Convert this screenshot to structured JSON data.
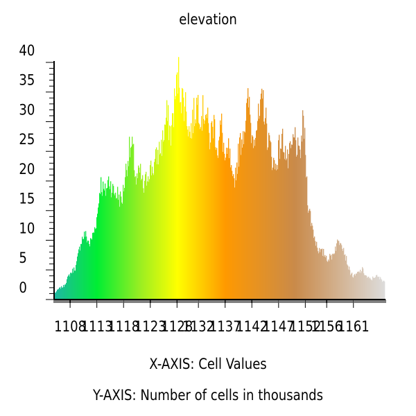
{
  "chart_data": {
    "type": "bar",
    "title": "elevation",
    "xlabel": "X-AXIS: Cell Values",
    "ylabel": "Y-AXIS: Number of cells in thousands",
    "ylim": [
      0,
      40
    ],
    "xlim": [
      1105,
      1167
    ],
    "y_ticks": [
      0,
      5,
      10,
      15,
      20,
      25,
      30,
      35,
      40
    ],
    "x_ticks": [
      1108,
      1113,
      1118,
      1123,
      1128,
      1132,
      1137,
      1142,
      1147,
      1152,
      1156,
      1161
    ],
    "grid": false,
    "legend": "none",
    "color_stops": [
      {
        "value": 1105,
        "color": "#1fb7a4"
      },
      {
        "value": 1113,
        "color": "#00ee33"
      },
      {
        "value": 1121,
        "color": "#99ee22"
      },
      {
        "value": 1128,
        "color": "#ffff00"
      },
      {
        "value": 1137,
        "color": "#ff9900"
      },
      {
        "value": 1150,
        "color": "#c98a4a"
      },
      {
        "value": 1167,
        "color": "#dddddd"
      }
    ],
    "series_points": [
      [
        1105.0,
        1.0
      ],
      [
        1105.8,
        1.8
      ],
      [
        1106.8,
        2.3
      ],
      [
        1107.8,
        4.2
      ],
      [
        1109.0,
        5.5
      ],
      [
        1110.0,
        10.0
      ],
      [
        1110.7,
        11.0
      ],
      [
        1111.6,
        9.3
      ],
      [
        1112.4,
        11.5
      ],
      [
        1113.0,
        14.0
      ],
      [
        1113.6,
        19.8
      ],
      [
        1114.4,
        17.8
      ],
      [
        1115.2,
        20.3
      ],
      [
        1116.0,
        18.2
      ],
      [
        1116.8,
        17.8
      ],
      [
        1117.6,
        16.5
      ],
      [
        1118.4,
        22.0
      ],
      [
        1119.0,
        25.0
      ],
      [
        1119.6,
        25.5
      ],
      [
        1120.3,
        19.8
      ],
      [
        1121.0,
        21.5
      ],
      [
        1121.7,
        18.5
      ],
      [
        1122.6,
        21.8
      ],
      [
        1123.5,
        22.3
      ],
      [
        1124.3,
        24.3
      ],
      [
        1125.2,
        26.5
      ],
      [
        1126.0,
        31.0
      ],
      [
        1126.8,
        27.8
      ],
      [
        1127.5,
        33.5
      ],
      [
        1128.2,
        38.0
      ],
      [
        1128.8,
        34.0
      ],
      [
        1129.5,
        33.0
      ],
      [
        1130.3,
        27.8
      ],
      [
        1131.2,
        31.5
      ],
      [
        1131.8,
        33.5
      ],
      [
        1132.5,
        31.0
      ],
      [
        1133.3,
        32.3
      ],
      [
        1134.0,
        27.0
      ],
      [
        1134.8,
        30.0
      ],
      [
        1135.6,
        25.0
      ],
      [
        1136.2,
        29.8
      ],
      [
        1137.0,
        22.5
      ],
      [
        1137.6,
        25.5
      ],
      [
        1138.3,
        19.0
      ],
      [
        1139.0,
        22.0
      ],
      [
        1139.8,
        26.5
      ],
      [
        1140.6,
        29.5
      ],
      [
        1141.3,
        33.5
      ],
      [
        1142.0,
        27.0
      ],
      [
        1142.7,
        29.5
      ],
      [
        1143.4,
        30.5
      ],
      [
        1144.0,
        34.0
      ],
      [
        1144.8,
        28.0
      ],
      [
        1145.6,
        24.5
      ],
      [
        1146.3,
        22.0
      ],
      [
        1147.0,
        25.5
      ],
      [
        1147.8,
        27.0
      ],
      [
        1148.6,
        23.0
      ],
      [
        1149.3,
        25.0
      ],
      [
        1150.0,
        27.5
      ],
      [
        1150.8,
        23.5
      ],
      [
        1151.6,
        30.5
      ],
      [
        1152.4,
        16.5
      ],
      [
        1153.1,
        12.8
      ],
      [
        1153.8,
        10.0
      ],
      [
        1154.6,
        8.0
      ],
      [
        1155.4,
        7.8
      ],
      [
        1156.2,
        6.8
      ],
      [
        1157.0,
        7.5
      ],
      [
        1157.8,
        9.3
      ],
      [
        1158.6,
        10.3
      ],
      [
        1159.4,
        7.5
      ],
      [
        1160.2,
        4.8
      ],
      [
        1161.0,
        3.8
      ],
      [
        1161.8,
        4.5
      ],
      [
        1162.6,
        5.0
      ],
      [
        1163.4,
        3.8
      ],
      [
        1164.2,
        3.3
      ],
      [
        1165.0,
        4.0
      ],
      [
        1166.0,
        3.5
      ],
      [
        1167.0,
        3.0
      ]
    ]
  }
}
